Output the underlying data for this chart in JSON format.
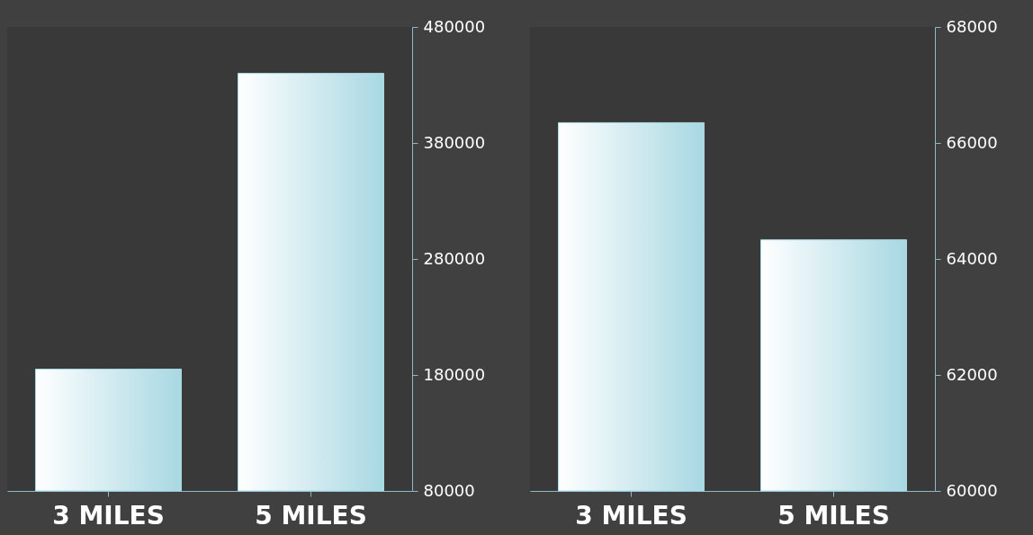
{
  "chart_data": [
    {
      "type": "bar",
      "categories": [
        "3 MILES",
        "5 MILES"
      ],
      "values": [
        185000,
        440000
      ],
      "color": "#a8d8e2",
      "ylim": [
        80000,
        480000
      ],
      "yticks": [
        80000,
        180000,
        280000,
        380000,
        480000
      ],
      "grid": false
    },
    {
      "type": "bar",
      "categories": [
        "3 MILES",
        "5 MILES"
      ],
      "values": [
        66350,
        64330
      ],
      "color": "#a8d8e2",
      "ylim": [
        60000,
        68000
      ],
      "yticks": [
        60000,
        62000,
        64000,
        66000,
        68000
      ],
      "grid": false
    }
  ]
}
